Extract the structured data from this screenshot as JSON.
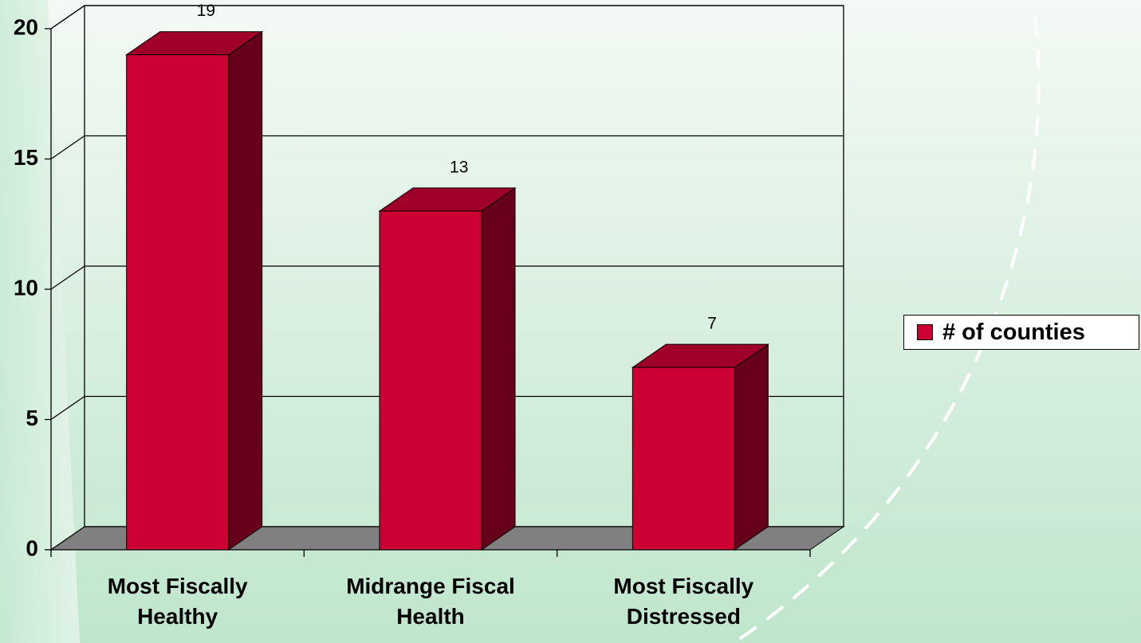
{
  "chart_data": {
    "type": "bar3d",
    "categories": [
      "Most Fiscally Healthy",
      "Midrange Fiscal Health",
      "Most Fiscally Distressed"
    ],
    "series": [
      {
        "name": "# of counties",
        "color": "#cc0033",
        "values": [
          19,
          13,
          7
        ]
      }
    ],
    "ylim": [
      0,
      20
    ],
    "yticks": [
      0,
      5,
      10,
      15,
      20
    ],
    "grid": true,
    "legend": "right"
  }
}
